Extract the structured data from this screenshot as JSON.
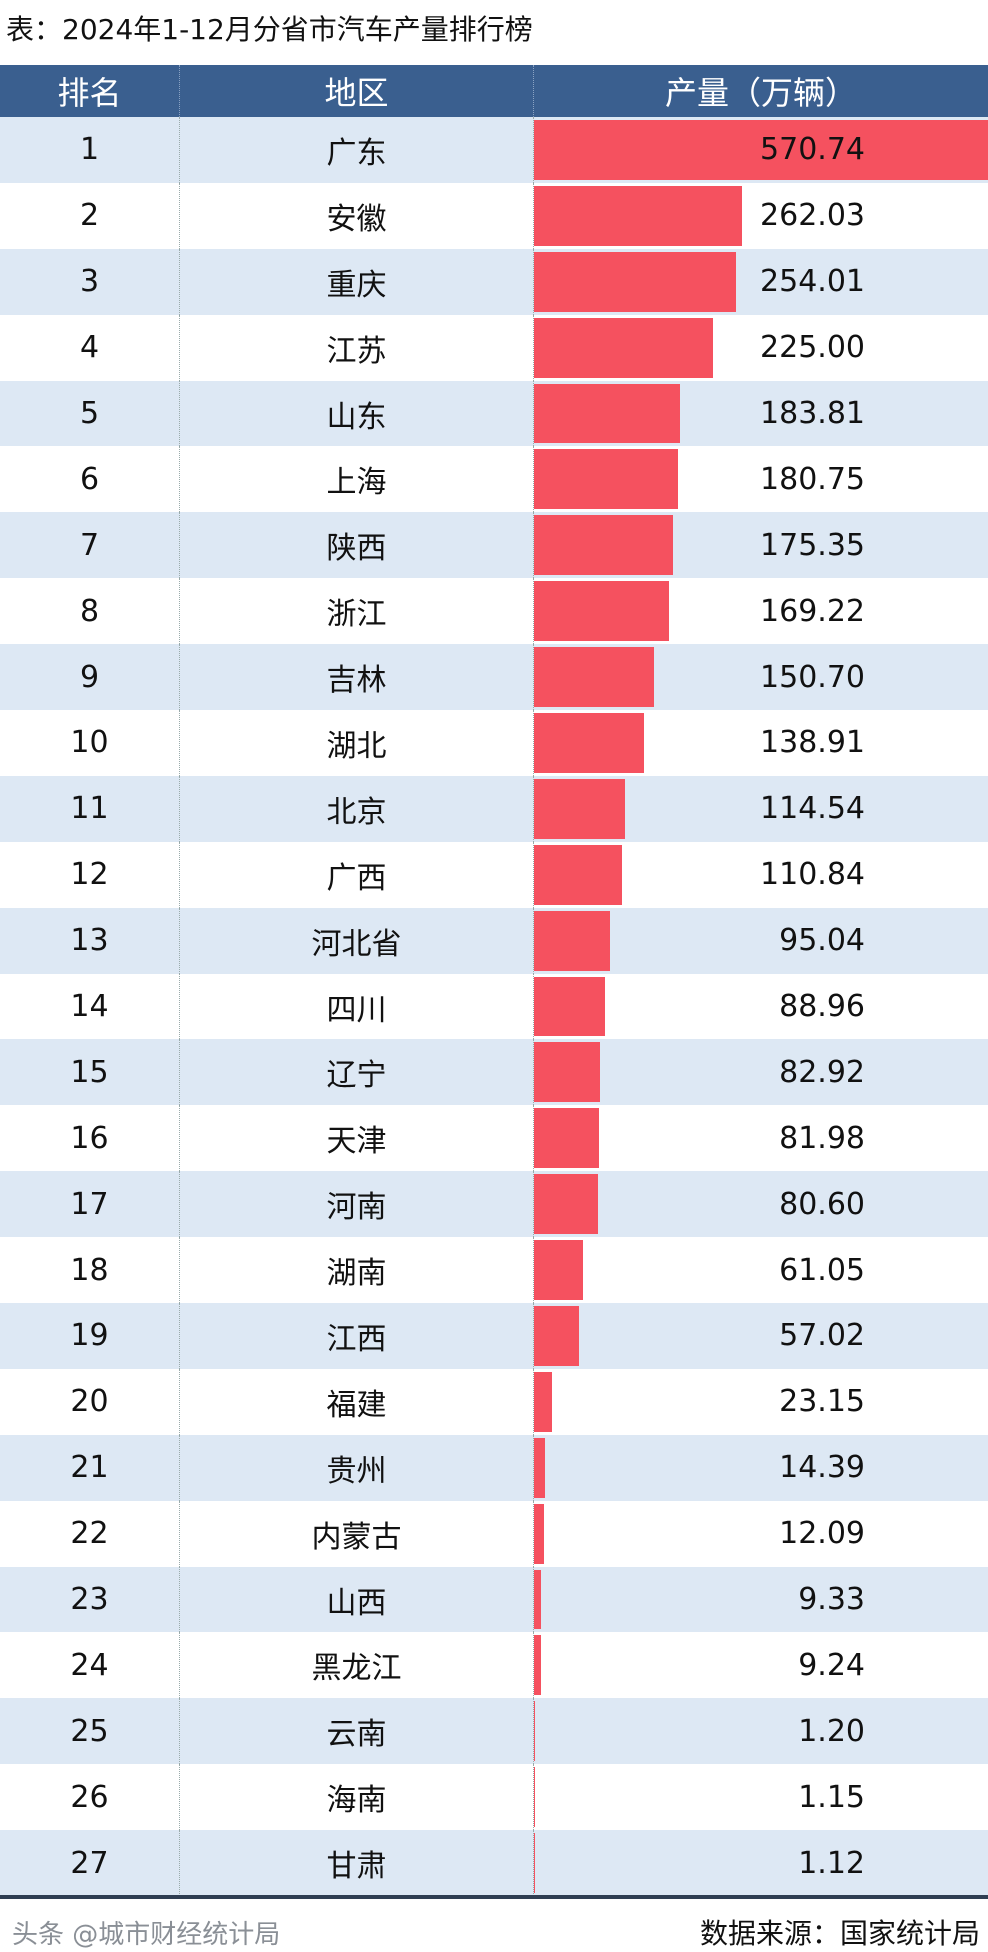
{
  "title": "表：2024年1-12月分省市汽车产量排行榜",
  "headers": {
    "rank": "排名",
    "region": "地区",
    "output": "产量（万辆）"
  },
  "colors": {
    "header_bg": "#3a5f8f",
    "bar": "#f5515f",
    "row_alt": "#dde8f4"
  },
  "chart_data": {
    "type": "table",
    "title": "表：2024年1-12月分省市汽车产量排行榜",
    "columns": [
      "排名",
      "地区",
      "产量（万辆）"
    ],
    "rows": [
      {
        "rank": "1",
        "region": "广东",
        "value": "570.74"
      },
      {
        "rank": "2",
        "region": "安徽",
        "value": "262.03"
      },
      {
        "rank": "3",
        "region": "重庆",
        "value": "254.01"
      },
      {
        "rank": "4",
        "region": "江苏",
        "value": "225.00"
      },
      {
        "rank": "5",
        "region": "山东",
        "value": "183.81"
      },
      {
        "rank": "6",
        "region": "上海",
        "value": "180.75"
      },
      {
        "rank": "7",
        "region": "陕西",
        "value": "175.35"
      },
      {
        "rank": "8",
        "region": "浙江",
        "value": "169.22"
      },
      {
        "rank": "9",
        "region": "吉林",
        "value": "150.70"
      },
      {
        "rank": "10",
        "region": "湖北",
        "value": "138.91"
      },
      {
        "rank": "11",
        "region": "北京",
        "value": "114.54"
      },
      {
        "rank": "12",
        "region": "广西",
        "value": "110.84"
      },
      {
        "rank": "13",
        "region": "河北省",
        "value": "95.04"
      },
      {
        "rank": "14",
        "region": "四川",
        "value": "88.96"
      },
      {
        "rank": "15",
        "region": "辽宁",
        "value": "82.92"
      },
      {
        "rank": "16",
        "region": "天津",
        "value": "81.98"
      },
      {
        "rank": "17",
        "region": "河南",
        "value": "80.60"
      },
      {
        "rank": "18",
        "region": "湖南",
        "value": "61.05"
      },
      {
        "rank": "19",
        "region": "江西",
        "value": "57.02"
      },
      {
        "rank": "20",
        "region": "福建",
        "value": "23.15"
      },
      {
        "rank": "21",
        "region": "贵州",
        "value": "14.39"
      },
      {
        "rank": "22",
        "region": "内蒙古",
        "value": "12.09"
      },
      {
        "rank": "23",
        "region": "山西",
        "value": "9.33"
      },
      {
        "rank": "24",
        "region": "黑龙江",
        "value": "9.24"
      },
      {
        "rank": "25",
        "region": "云南",
        "value": "1.20"
      },
      {
        "rank": "26",
        "region": "海南",
        "value": "1.15"
      },
      {
        "rank": "27",
        "region": "甘肃",
        "value": "1.12"
      }
    ]
  },
  "source": "数据来源：国家统计局",
  "watermark": "头条 @城市财经统计局"
}
